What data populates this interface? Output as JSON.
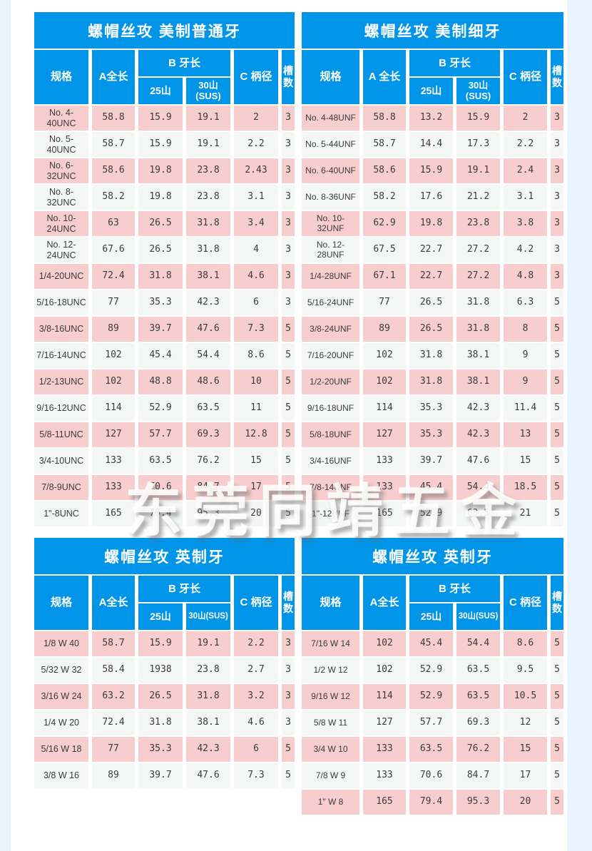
{
  "watermark": "东莞同靖五金",
  "colors": {
    "header_blue": "#0195e9",
    "row_pink": "#f8cdce",
    "row_gray": "#f5f6f6",
    "page_edge_blue": "#e8f4fb",
    "title_text": "#ffffff"
  },
  "tables": [
    {
      "title": "螺帽丝攻 美制普通牙",
      "headers": {
        "spec": "规格",
        "a": "A全长",
        "b": "B 牙长",
        "b25": "25山",
        "b30": "30山\n(SUS)",
        "c": "C 柄径",
        "slots": "槽数"
      },
      "rows": [
        [
          "No. 4-40UNC",
          "58.8",
          "15.9",
          "19.1",
          "2",
          "3"
        ],
        [
          "No. 5-40UNC",
          "58.7",
          "15.9",
          "19.1",
          "2.2",
          "3"
        ],
        [
          "No. 6-32UNC",
          "58.6",
          "19.8",
          "23.8",
          "2.43",
          "3"
        ],
        [
          "No. 8-32UNC",
          "58.2",
          "19.8",
          "23.8",
          "3.1",
          "3"
        ],
        [
          "No. 10-24UNC",
          "63",
          "26.5",
          "31.8",
          "3.4",
          "3"
        ],
        [
          "No. 12-24UNC",
          "67.6",
          "26.5",
          "31.8",
          "4",
          "3"
        ],
        [
          "1/4-20UNC",
          "72.4",
          "31.8",
          "38.1",
          "4.6",
          "3"
        ],
        [
          "5/16-18UNC",
          "77",
          "35.3",
          "42.3",
          "6",
          "3"
        ],
        [
          "3/8-16UNC",
          "89",
          "39.7",
          "47.6",
          "7.3",
          "5"
        ],
        [
          "7/16-14UNC",
          "102",
          "45.4",
          "54.4",
          "8.6",
          "5"
        ],
        [
          "1/2-13UNC",
          "102",
          "48.8",
          "48.6",
          "10",
          "5"
        ],
        [
          "9/16-12UNC",
          "114",
          "52.9",
          "63.5",
          "11",
          "5"
        ],
        [
          "5/8-11UNC",
          "127",
          "57.7",
          "69.3",
          "12.8",
          "5"
        ],
        [
          "3/4-10UNC",
          "133",
          "63.5",
          "76.2",
          "15",
          "5"
        ],
        [
          "7/8-9UNC",
          "133",
          "70.6",
          "84.7",
          "17",
          "5"
        ],
        [
          "1\"-8UNC",
          "165",
          "79.4",
          "95.3",
          "20",
          "5"
        ]
      ]
    },
    {
      "title": "螺帽丝攻 美制细牙",
      "headers": {
        "spec": "规格",
        "a": "A 全长",
        "b": "B 牙长",
        "b25": "25山",
        "b30": "30山\n(SUS)",
        "c": "C 柄径",
        "slots": "槽数"
      },
      "rows": [
        [
          "No. 4-48UNF",
          "58.8",
          "13.2",
          "15.9",
          "2",
          "3"
        ],
        [
          "No. 5-44UNF",
          "58.7",
          "14.4",
          "17.3",
          "2.2",
          "3"
        ],
        [
          "No. 6-40UNF",
          "58.6",
          "15.9",
          "19.1",
          "2.4",
          "3"
        ],
        [
          "No. 8-36UNF",
          "58.2",
          "17.6",
          "21.2",
          "3.1",
          "3"
        ],
        [
          "No. 10-32UNF",
          "62.9",
          "19.8",
          "23.8",
          "3.8",
          "3"
        ],
        [
          "No. 12-28UNF",
          "67.5",
          "22.7",
          "27.2",
          "4.2",
          "3"
        ],
        [
          "1/4-28UNF",
          "67.1",
          "22.7",
          "27.2",
          "4.8",
          "3"
        ],
        [
          "5/16-24UNF",
          "77",
          "26.5",
          "31.8",
          "6.3",
          "5"
        ],
        [
          "3/8-24UNF",
          "89",
          "26.5",
          "31.8",
          "8",
          "5"
        ],
        [
          "7/16-20UNF",
          "102",
          "31.8",
          "38.1",
          "9",
          "5"
        ],
        [
          "1/2-20UNF",
          "102",
          "31.8",
          "38.1",
          "9",
          "5"
        ],
        [
          "9/16-18UNF",
          "114",
          "35.3",
          "42.3",
          "11.4",
          "5"
        ],
        [
          "5/8-18UNF",
          "127",
          "35.3",
          "42.3",
          "13",
          "5"
        ],
        [
          "3/4-16UNF",
          "133",
          "39.7",
          "47.6",
          "15",
          "5"
        ],
        [
          "7/8-14UNF",
          "133",
          "45.4",
          "54.4",
          "18.5",
          "5"
        ],
        [
          "1\"-12UNF",
          "165",
          "52.9",
          "63.5",
          "21",
          "5"
        ]
      ]
    },
    {
      "title": "螺帽丝攻 英制牙",
      "headers": {
        "spec": "规格",
        "a": "A全长",
        "b": "B 牙长",
        "b25": "25山",
        "b30": "30山(SUS)",
        "c": "C 柄径",
        "slots": "槽数"
      },
      "rows": [
        [
          "1/8 W 40",
          "58.7",
          "15.9",
          "19.1",
          "2.2",
          "3"
        ],
        [
          "5/32 W 32",
          "58.4",
          "1938",
          "23.8",
          "2.7",
          "3"
        ],
        [
          "3/16 W 24",
          "63.2",
          "26.5",
          "31.8",
          "3.2",
          "3"
        ],
        [
          "1/4 W 20",
          "72.4",
          "31.8",
          "38.1",
          "4.6",
          "3"
        ],
        [
          "5/16 W 18",
          "77",
          "35.3",
          "42.3",
          "6",
          "5"
        ],
        [
          "3/8 W 16",
          "89",
          "39.7",
          "47.6",
          "7.3",
          "5"
        ]
      ]
    },
    {
      "title": "螺帽丝攻 英制牙",
      "headers": {
        "spec": "规格",
        "a": "A全长",
        "b": "B 牙长",
        "b25": "25山",
        "b30": "30山(SUS)",
        "c": "C 柄径",
        "slots": "槽数"
      },
      "rows": [
        [
          "7/16 W 14",
          "102",
          "45.4",
          "54.4",
          "8.6",
          "5"
        ],
        [
          "1/2 W 12",
          "102",
          "52.9",
          "63.5",
          "9.5",
          "5"
        ],
        [
          "9/16 W 12",
          "114",
          "52.9",
          "63.5",
          "10.5",
          "5"
        ],
        [
          "5/8 W 11",
          "127",
          "57.7",
          "69.3",
          "12",
          "5"
        ],
        [
          "3/4 W 10",
          "133",
          "63.5",
          "76.2",
          "15",
          "5"
        ],
        [
          "7/8 W 9",
          "133",
          "70.6",
          "84.7",
          "17",
          "5"
        ],
        [
          "1\" W 8",
          "165",
          "79.4",
          "95.3",
          "20",
          "5"
        ]
      ]
    }
  ]
}
